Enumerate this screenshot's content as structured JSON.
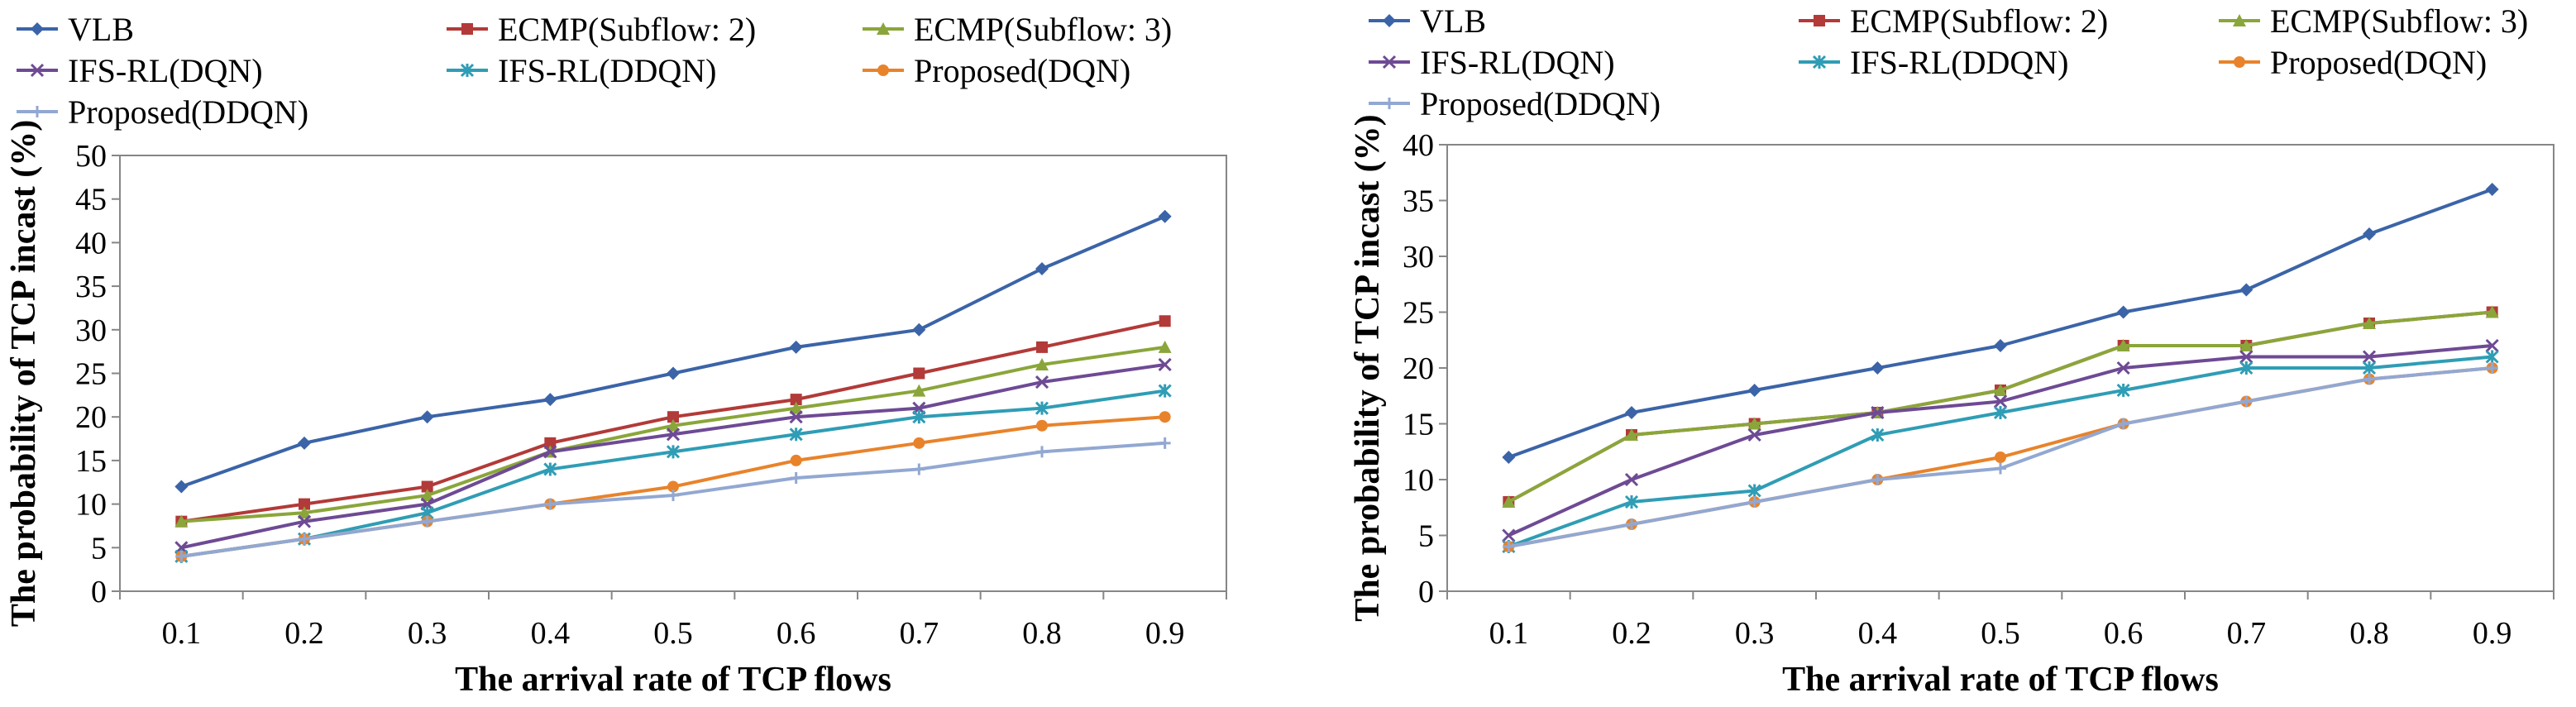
{
  "chart_data": [
    {
      "type": "line",
      "title": "",
      "xlabel": "The arrival rate of TCP flows",
      "ylabel": "The probability of TCP incast (%)",
      "categories": [
        "0.1",
        "0.2",
        "0.3",
        "0.4",
        "0.5",
        "0.6",
        "0.7",
        "0.8",
        "0.9"
      ],
      "ylim": [
        0,
        50
      ],
      "yticks": [
        0,
        5,
        10,
        15,
        20,
        25,
        30,
        35,
        40,
        45,
        50
      ],
      "grid": false,
      "legend_position": "top",
      "series": [
        {
          "name": "VLB",
          "color": "#3b64a8",
          "marker": "diamond",
          "values": [
            12,
            17,
            20,
            22,
            25,
            28,
            30,
            37,
            43
          ]
        },
        {
          "name": "ECMP(Subflow: 2)",
          "color": "#b23a38",
          "marker": "square",
          "values": [
            8,
            10,
            12,
            17,
            20,
            22,
            25,
            28,
            31
          ]
        },
        {
          "name": "ECMP(Subflow: 3)",
          "color": "#8aa63a",
          "marker": "triangle",
          "values": [
            8,
            9,
            11,
            16,
            19,
            21,
            23,
            26,
            28
          ]
        },
        {
          "name": "IFS-RL(DQN)",
          "color": "#6e4a94",
          "marker": "x",
          "values": [
            5,
            8,
            10,
            16,
            18,
            20,
            21,
            24,
            26
          ]
        },
        {
          "name": "IFS-RL(DDQN)",
          "color": "#2f9db5",
          "marker": "star",
          "values": [
            4,
            6,
            9,
            14,
            16,
            18,
            20,
            21,
            23
          ]
        },
        {
          "name": "Proposed(DQN)",
          "color": "#e8832b",
          "marker": "circle",
          "values": [
            4,
            6,
            8,
            10,
            12,
            15,
            17,
            19,
            20
          ]
        },
        {
          "name": "Proposed(DDQN)",
          "color": "#92a8d2",
          "marker": "plus",
          "values": [
            4,
            6,
            8,
            10,
            11,
            13,
            14,
            16,
            17
          ]
        }
      ]
    },
    {
      "type": "line",
      "title": "",
      "xlabel": "The arrival rate of TCP flows",
      "ylabel": "The probability of TCP incast (%)",
      "categories": [
        "0.1",
        "0.2",
        "0.3",
        "0.4",
        "0.5",
        "0.6",
        "0.7",
        "0.8",
        "0.9"
      ],
      "ylim": [
        0,
        40
      ],
      "yticks": [
        0,
        5,
        10,
        15,
        20,
        25,
        30,
        35,
        40
      ],
      "grid": false,
      "legend_position": "top",
      "series": [
        {
          "name": "VLB",
          "color": "#3b64a8",
          "marker": "diamond",
          "values": [
            12,
            16,
            18,
            20,
            22,
            25,
            27,
            32,
            36
          ]
        },
        {
          "name": "ECMP(Subflow: 2)",
          "color": "#b23a38",
          "marker": "square",
          "values": [
            8,
            14,
            15,
            16,
            18,
            22,
            22,
            24,
            25
          ]
        },
        {
          "name": "ECMP(Subflow: 3)",
          "color": "#8aa63a",
          "marker": "triangle",
          "values": [
            8,
            14,
            15,
            16,
            18,
            22,
            22,
            24,
            25
          ]
        },
        {
          "name": "IFS-RL(DQN)",
          "color": "#6e4a94",
          "marker": "x",
          "values": [
            5,
            10,
            14,
            16,
            17,
            20,
            21,
            21,
            22
          ]
        },
        {
          "name": "IFS-RL(DDQN)",
          "color": "#2f9db5",
          "marker": "star",
          "values": [
            4,
            8,
            9,
            14,
            16,
            18,
            20,
            20,
            21
          ]
        },
        {
          "name": "Proposed(DQN)",
          "color": "#e8832b",
          "marker": "circle",
          "values": [
            4,
            6,
            8,
            10,
            12,
            15,
            17,
            19,
            20
          ]
        },
        {
          "name": "Proposed(DDQN)",
          "color": "#92a8d2",
          "marker": "plus",
          "values": [
            4,
            6,
            8,
            10,
            11,
            15,
            17,
            19,
            20
          ]
        }
      ]
    }
  ]
}
